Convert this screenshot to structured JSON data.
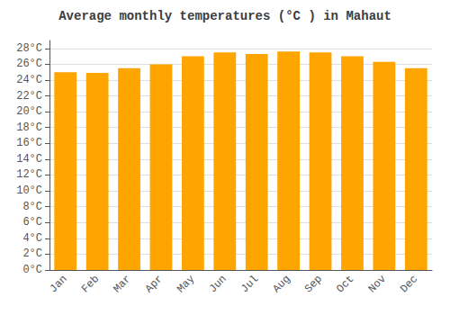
{
  "chart_data": {
    "type": "bar",
    "title": "Average monthly temperatures (°C ) in Mahaut",
    "categories": [
      "Jan",
      "Feb",
      "Mar",
      "Apr",
      "May",
      "Jun",
      "Jul",
      "Aug",
      "Sep",
      "Oct",
      "Nov",
      "Dec"
    ],
    "values": [
      25.0,
      24.9,
      25.5,
      26.0,
      27.0,
      27.5,
      27.3,
      27.6,
      27.5,
      27.0,
      26.3,
      25.5
    ],
    "color": "#FFA500",
    "ylim": [
      0,
      29
    ],
    "yticks": [
      {
        "value": 0,
        "label": "0°C"
      },
      {
        "value": 2,
        "label": "2°C"
      },
      {
        "value": 4,
        "label": "4°C"
      },
      {
        "value": 6,
        "label": "6°C"
      },
      {
        "value": 8,
        "label": "8°C"
      },
      {
        "value": 10,
        "label": "10°C"
      },
      {
        "value": 12,
        "label": "12°C"
      },
      {
        "value": 14,
        "label": "14°C"
      },
      {
        "value": 16,
        "label": "16°C"
      },
      {
        "value": 18,
        "label": "18°C"
      },
      {
        "value": 20,
        "label": "20°C"
      },
      {
        "value": 22,
        "label": "22°C"
      },
      {
        "value": 24,
        "label": "24°C"
      },
      {
        "value": 26,
        "label": "26°C"
      },
      {
        "value": 28,
        "label": "28°C"
      }
    ],
    "grid": true
  }
}
